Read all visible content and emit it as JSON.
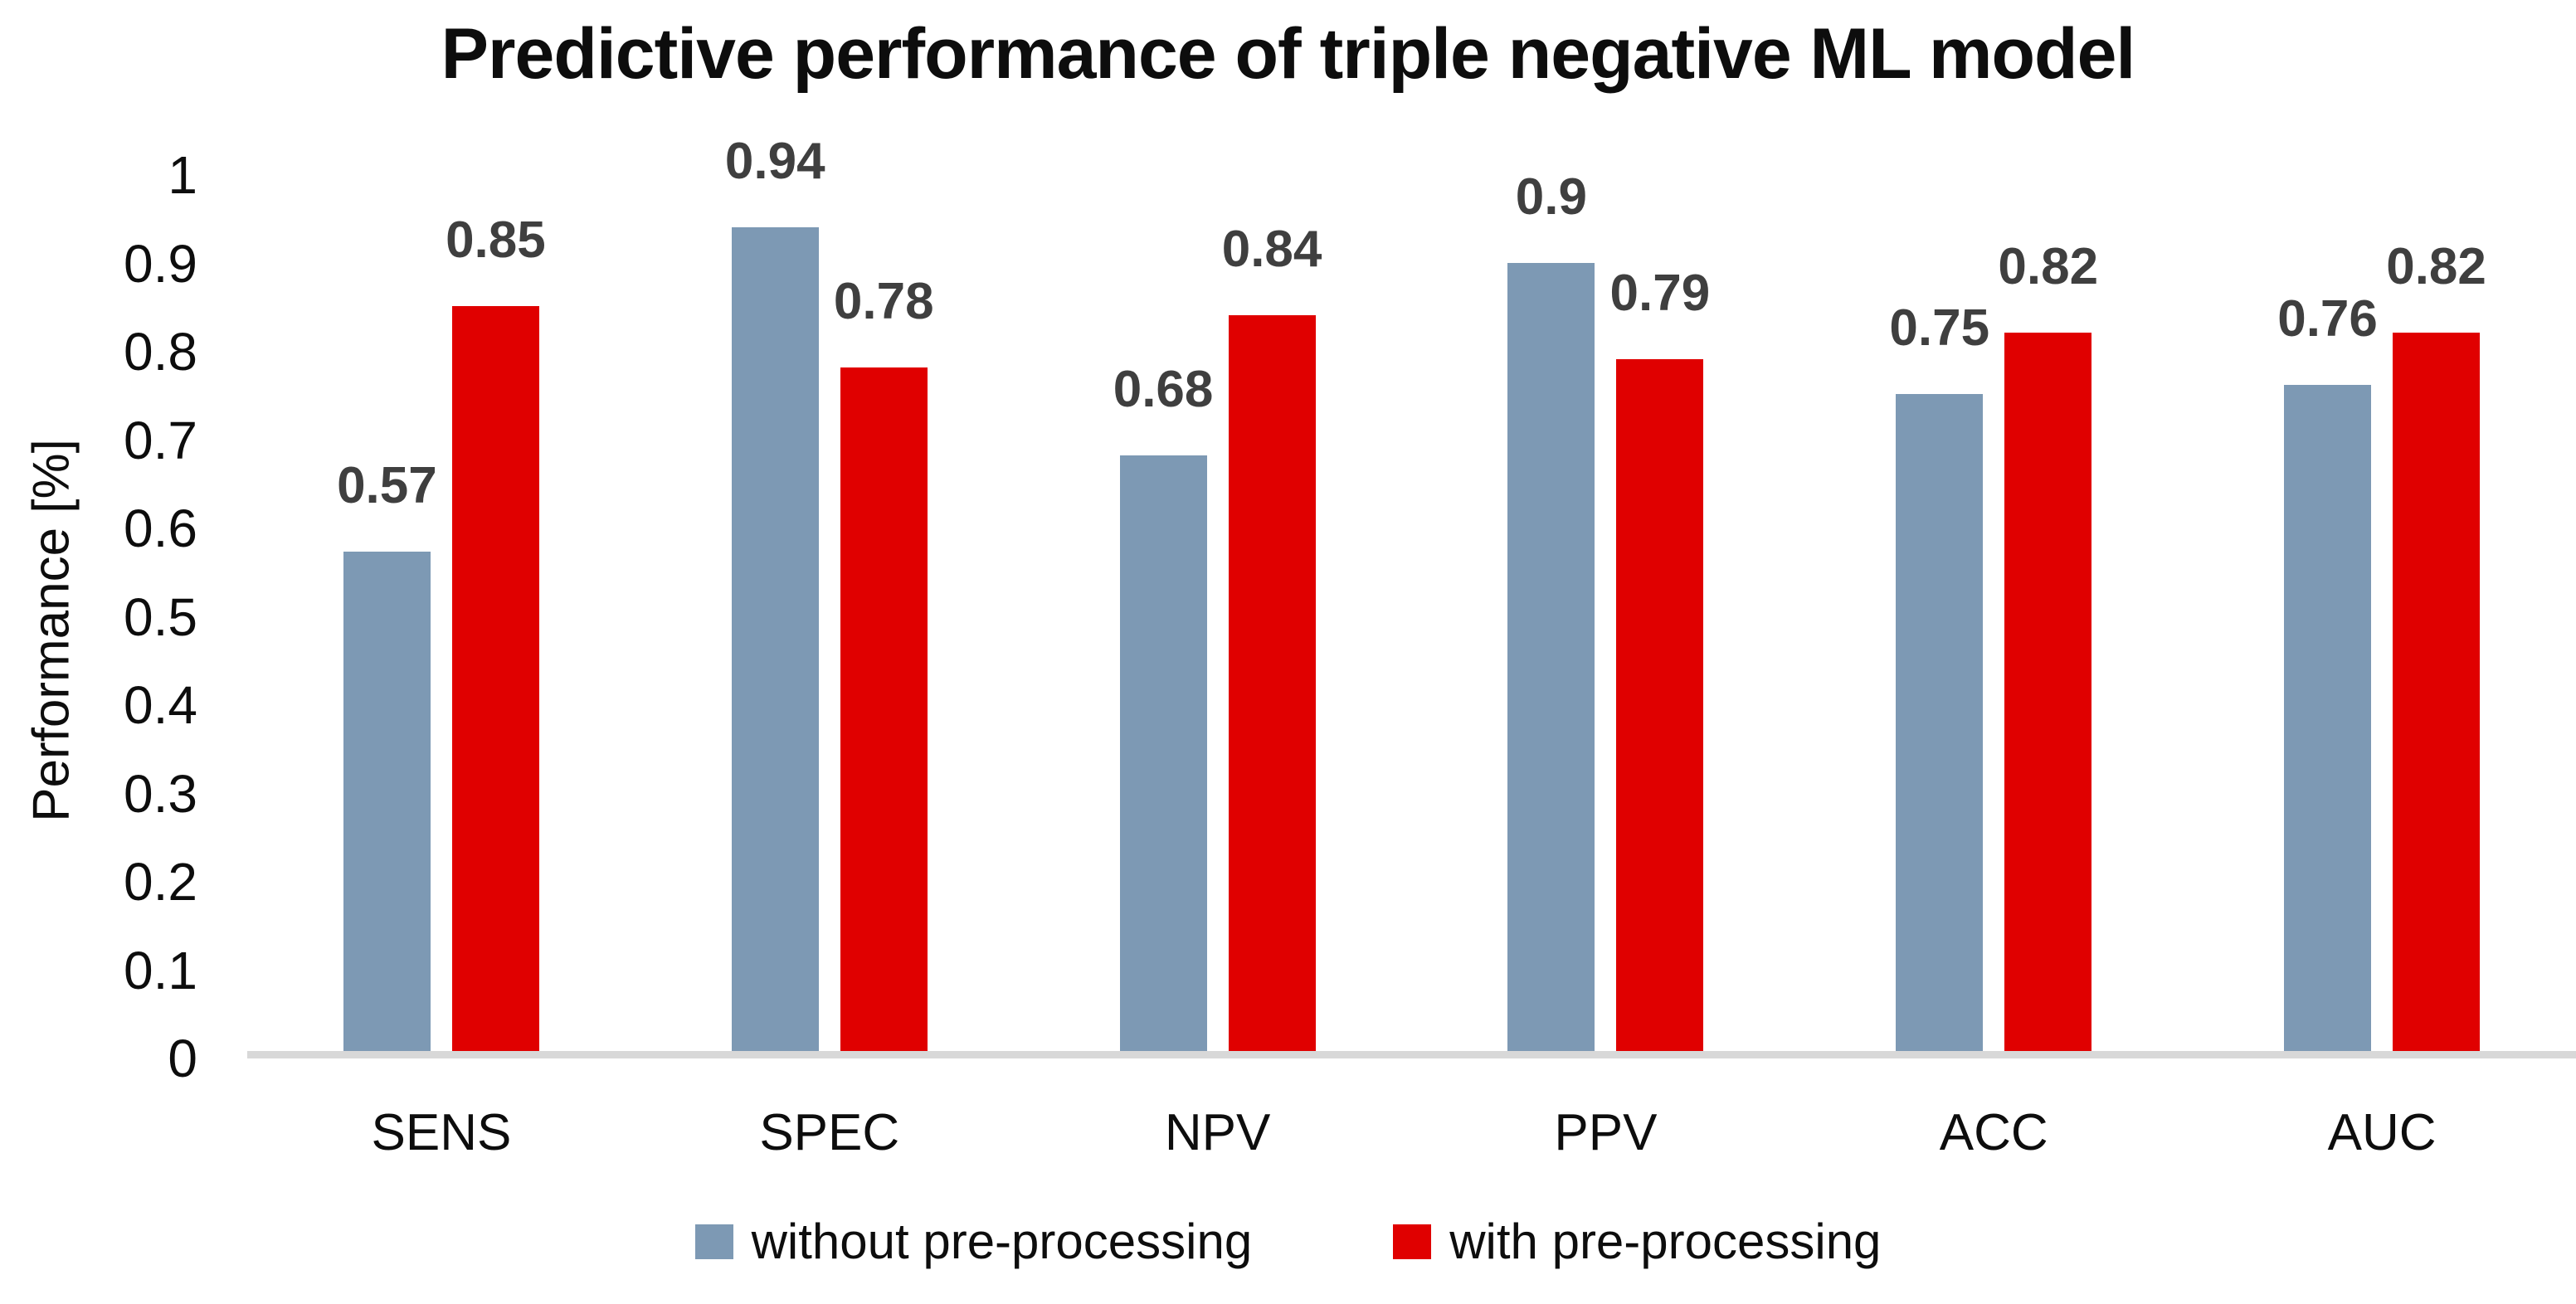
{
  "title": "Predictive performance of triple negative ML model",
  "chart_data": {
    "type": "bar",
    "title": "Predictive performance of triple negative ML model",
    "categories": [
      "SENS",
      "SPEC",
      "NPV",
      "PPV",
      "ACC",
      "AUC"
    ],
    "series": [
      {
        "name": "without pre-processing",
        "color": "#7D99B4",
        "values": [
          0.57,
          0.94,
          0.68,
          0.9,
          0.75,
          0.76
        ],
        "labels": [
          "0.57",
          "0.94",
          "0.68",
          "0.9",
          "0.75",
          "0.76"
        ]
      },
      {
        "name": "with pre-processing",
        "color": "#E00000",
        "values": [
          0.85,
          0.78,
          0.84,
          0.79,
          0.82,
          0.82
        ],
        "labels": [
          "0.85",
          "0.78",
          "0.84",
          "0.79",
          "0.82",
          "0.82"
        ]
      }
    ],
    "xlabel": "",
    "ylabel": "Performance [%]",
    "ylim": [
      0,
      1
    ],
    "y_ticks": [
      "1",
      "0.9",
      "0.8",
      "0.7",
      "0.6",
      "0.5",
      "0.4",
      "0.3",
      "0.2",
      "0.1",
      "0"
    ],
    "grid": false,
    "legend_position": "bottom",
    "colors": {
      "data_label": "#3F3F3F",
      "axis_line": "#D8D8D8",
      "text": "#0D0D0D",
      "background": "#FFFFFF"
    }
  }
}
